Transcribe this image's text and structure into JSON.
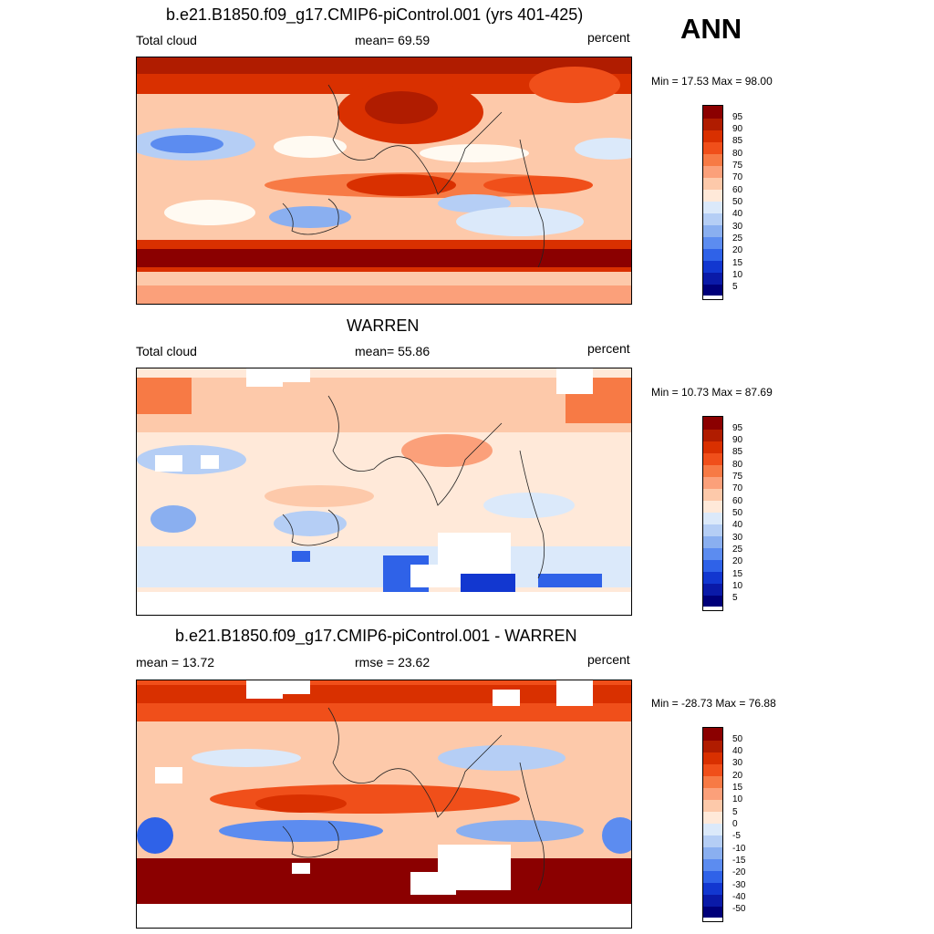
{
  "season": "ANN",
  "panels": [
    {
      "title": "b.e21.B1850.f09_g17.CMIP6-piControl.001 (yrs 401-425)",
      "left_label": "Total cloud",
      "stat_label": "mean=  69.59",
      "units": "percent",
      "minmax": "Min =  17.53 Max =  98.00",
      "levels": [
        "95",
        "90",
        "85",
        "80",
        "75",
        "70",
        "60",
        "50",
        "40",
        "30",
        "25",
        "20",
        "15",
        "10",
        "5"
      ]
    },
    {
      "title": "WARREN",
      "left_label": "Total cloud",
      "stat_label": "mean=  55.86",
      "units": "percent",
      "minmax": "Min =  10.73 Max =  87.69",
      "levels": [
        "95",
        "90",
        "85",
        "80",
        "75",
        "70",
        "60",
        "50",
        "40",
        "30",
        "25",
        "20",
        "15",
        "10",
        "5"
      ]
    },
    {
      "title": "b.e21.B1850.f09_g17.CMIP6-piControl.001 - WARREN",
      "left_label": "mean =  13.72",
      "stat_label": "rmse =  23.62",
      "units": "percent",
      "minmax": "Min = -28.73 Max =  76.88",
      "levels": [
        "50",
        "40",
        "30",
        "20",
        "15",
        "10",
        "5",
        "0",
        "-5",
        "-10",
        "-15",
        "-20",
        "-30",
        "-40",
        "-50"
      ]
    }
  ],
  "colors": {
    "ramp": [
      "#8b0000",
      "#b01c00",
      "#d93000",
      "#f04f1a",
      "#f77a45",
      "#fba07a",
      "#fdc9aa",
      "#ffe9d9",
      "#fffaf2",
      "#dbe9fa",
      "#b5cef5",
      "#8aaff0",
      "#5c8cf0",
      "#2f62e8",
      "#1237d0",
      "#0a1aa8",
      "#00007a"
    ]
  }
}
